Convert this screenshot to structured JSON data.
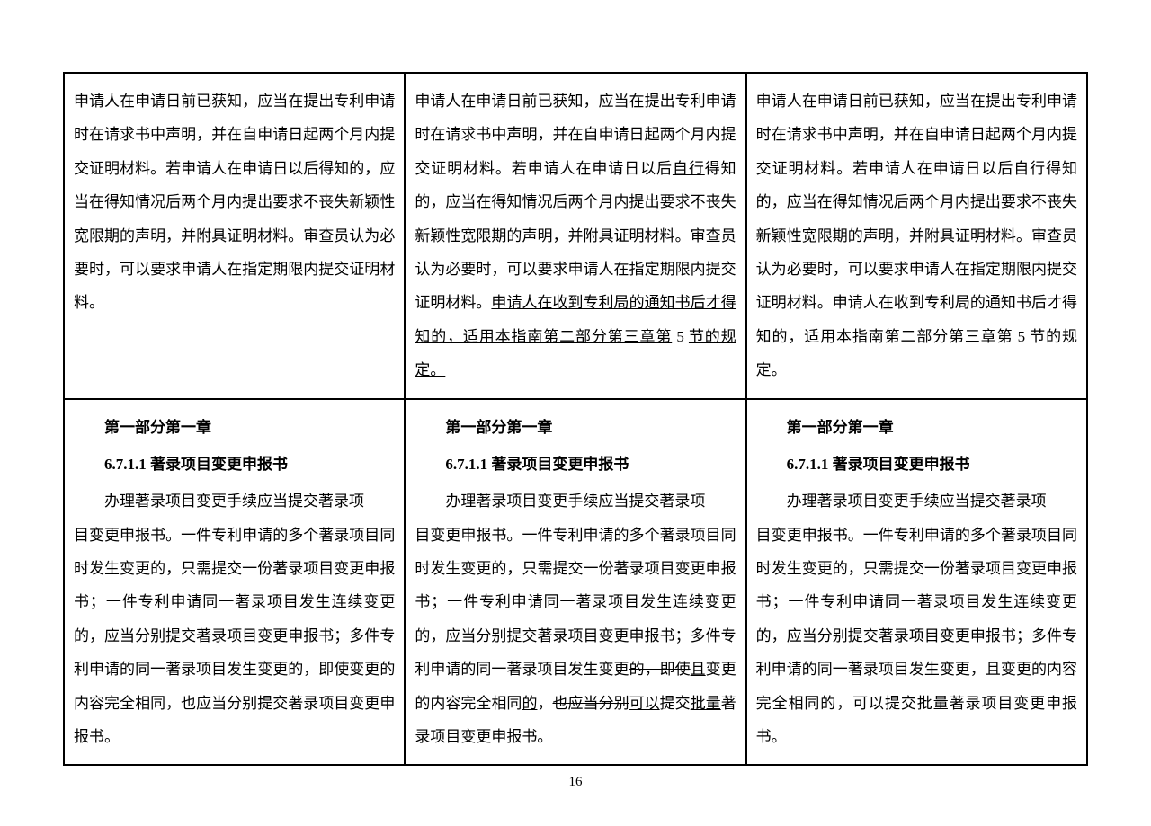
{
  "page_number": "16",
  "table": {
    "columns": 3,
    "column_widths": [
      "33.3%",
      "33.3%",
      "33.3%"
    ],
    "border_color": "#000000",
    "background_color": "#ffffff",
    "text_color": "#000000",
    "font_size": 17,
    "line_height": 2.2,
    "rows": [
      {
        "cells": [
          {
            "segments": [
              {
                "text": "申请人在申请日前已获知，应当在提出专利申请时在请求书中声明，并在自申请日起两个月内提交证明材料。若申请人在申请日以后得知的，应当在得知情况后两个月内提出要求不丧失新颖性宽限期的声明，并附具证明材料。审查员认为必要时，可以要求申请人在指定期限内提交证明材料。",
                "style": "plain"
              }
            ]
          },
          {
            "segments": [
              {
                "text": "申请人在申请日前已获知，应当在提出专利申请时在请求书中声明，并在自申请日起两个月内提交证明材料。若申请人在申请日以后",
                "style": "plain"
              },
              {
                "text": "自行",
                "style": "underline"
              },
              {
                "text": "得知的，应当在得知情况后两个月内提出要求不丧失新颖性宽限期的声明，并附具证明材料。审查员认为必要时，可以要求申请人在指定期限内提交证明材料。",
                "style": "plain"
              },
              {
                "text": "申请人在收到专利局的通知书后才得知的，适用本指南第二部分第三章第",
                "style": "underline"
              },
              {
                "text": " 5 ",
                "style": "plain"
              },
              {
                "text": "节的规定。",
                "style": "underline"
              }
            ]
          },
          {
            "segments": [
              {
                "text": "申请人在申请日前已获知，应当在提出专利申请时在请求书中声明，并在自申请日起两个月内提交证明材料。若申请人在申请日以后自行得知的，应当在得知情况后两个月内提出要求不丧失新颖性宽限期的声明，并附具证明材料。审查员认为必要时，可以要求申请人在指定期限内提交证明材料。申请人在收到专利局的通知书后才得知的，适用本指南第二部分第三章第 5 节的规定。",
                "style": "plain"
              }
            ]
          }
        ]
      },
      {
        "cells": [
          {
            "section_title": "第一部分第一章",
            "subsection_title": "6.7.1.1 著录项目变更申报书",
            "body_segments": [
              {
                "text": "办理著录项目变更手续应当提交著录项",
                "style": "plain",
                "indent": true
              }
            ],
            "body_continue": [
              {
                "text": "目变更申报书。一件专利申请的多个著录项目同时发生变更的，只需提交一份著录项目变更申报书；一件专利申请同一著录项目发生连续变更的，应当分别提交著录项目变更申报书；多件专利申请的同一著录项目发生变更的，即使变更的内容完全相同，也应当分别提交著录项目变更申报书。",
                "style": "plain"
              }
            ]
          },
          {
            "section_title": "第一部分第一章",
            "subsection_title": "6.7.1.1 著录项目变更申报书",
            "body_segments": [
              {
                "text": "办理著录项目变更手续应当提交著录项",
                "style": "plain",
                "indent": true
              }
            ],
            "body_continue": [
              {
                "text": "目变更申报书。一件专利申请的多个著录项目同时发生变更的，只需提交一份著录项目变更申报书；一件专利申请同一著录项目发生连续变更的，应当分别提交著录项目变更申报书；多件专利申请的同一著录项目发生变更",
                "style": "plain"
              },
              {
                "text": "的，即使",
                "style": "strikethrough"
              },
              {
                "text": "且",
                "style": "underline"
              },
              {
                "text": "变更的内容完全相同",
                "style": "plain"
              },
              {
                "text": "的",
                "style": "underline"
              },
              {
                "text": "，",
                "style": "plain"
              },
              {
                "text": "也应当分别",
                "style": "strikethrough"
              },
              {
                "text": "可以",
                "style": "underline"
              },
              {
                "text": "提交",
                "style": "plain"
              },
              {
                "text": "批量",
                "style": "underline"
              },
              {
                "text": "著录项目变更申报书。",
                "style": "plain"
              }
            ]
          },
          {
            "section_title": "第一部分第一章",
            "subsection_title": "6.7.1.1 著录项目变更申报书",
            "body_segments": [
              {
                "text": "办理著录项目变更手续应当提交著录项",
                "style": "plain",
                "indent": true
              }
            ],
            "body_continue": [
              {
                "text": "目变更申报书。一件专利申请的多个著录项目同时发生变更的，只需提交一份著录项目变更申报书；一件专利申请同一著录项目发生连续变更的，应当分别提交著录项目变更申报书；多件专利申请的同一著录项目发生变更，且变更的内容完全相同的，可以提交批量著录项目变更申报书。",
                "style": "plain"
              }
            ]
          }
        ]
      }
    ]
  }
}
